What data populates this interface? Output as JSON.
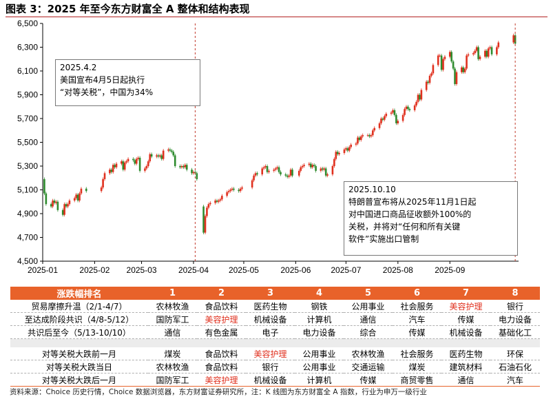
{
  "title": "图表 3：2025 年至今东方财富全 A 整体和结构表现",
  "chart_data": {
    "type": "candlestick",
    "x_ticks": [
      "2025-01",
      "2025-02",
      "2025-03",
      "2025-04",
      "2025-05",
      "2025-06",
      "2025-07",
      "2025-08",
      "2025-09"
    ],
    "y_ticks": [
      "6,500",
      "6,300",
      "6,100",
      "5,900",
      "5,700",
      "5,500",
      "5,300",
      "5,100",
      "4,900",
      "4,700",
      "4,500"
    ],
    "ylim": [
      4500,
      6500
    ],
    "up_color": "#e0301e",
    "down_color": "#2e8b2e",
    "event_lines": [
      "2025-04-02",
      "2025-10-10"
    ],
    "series": [
      {
        "date": "2025-01-02",
        "o": 5190,
        "c": 5070
      },
      {
        "date": "2025-01-03",
        "o": 5070,
        "c": 4980
      },
      {
        "date": "2025-01-06",
        "o": 4980,
        "c": 4960
      },
      {
        "date": "2025-01-07",
        "o": 4960,
        "c": 5010
      },
      {
        "date": "2025-01-08",
        "o": 5010,
        "c": 4990
      },
      {
        "date": "2025-01-09",
        "o": 4990,
        "c": 5000
      },
      {
        "date": "2025-01-10",
        "o": 5000,
        "c": 4930
      },
      {
        "date": "2025-01-13",
        "o": 4930,
        "c": 4890
      },
      {
        "date": "2025-01-14",
        "o": 4890,
        "c": 4980
      },
      {
        "date": "2025-01-15",
        "o": 4980,
        "c": 4960
      },
      {
        "date": "2025-01-16",
        "o": 4960,
        "c": 4980
      },
      {
        "date": "2025-01-17",
        "o": 4980,
        "c": 5010
      },
      {
        "date": "2025-01-20",
        "o": 5010,
        "c": 5030
      },
      {
        "date": "2025-01-21",
        "o": 5030,
        "c": 5060
      },
      {
        "date": "2025-01-22",
        "o": 5060,
        "c": 5010
      },
      {
        "date": "2025-01-23",
        "o": 5010,
        "c": 5070
      },
      {
        "date": "2025-01-24",
        "o": 5070,
        "c": 5110
      },
      {
        "date": "2025-01-27",
        "o": 5110,
        "c": 5090
      },
      {
        "date": "2025-02-05",
        "o": 5090,
        "c": 5120
      },
      {
        "date": "2025-02-06",
        "o": 5120,
        "c": 5190
      },
      {
        "date": "2025-02-07",
        "o": 5190,
        "c": 5240
      },
      {
        "date": "2025-02-10",
        "o": 5240,
        "c": 5270
      },
      {
        "date": "2025-02-11",
        "o": 5270,
        "c": 5250
      },
      {
        "date": "2025-02-12",
        "o": 5250,
        "c": 5310
      },
      {
        "date": "2025-02-13",
        "o": 5310,
        "c": 5290
      },
      {
        "date": "2025-02-14",
        "o": 5290,
        "c": 5320
      },
      {
        "date": "2025-02-17",
        "o": 5320,
        "c": 5340
      },
      {
        "date": "2025-02-18",
        "o": 5340,
        "c": 5270
      },
      {
        "date": "2025-02-19",
        "o": 5270,
        "c": 5330
      },
      {
        "date": "2025-02-20",
        "o": 5330,
        "c": 5340
      },
      {
        "date": "2025-02-21",
        "o": 5340,
        "c": 5360
      },
      {
        "date": "2025-02-24",
        "o": 5360,
        "c": 5350
      },
      {
        "date": "2025-02-25",
        "o": 5350,
        "c": 5320
      },
      {
        "date": "2025-02-26",
        "o": 5320,
        "c": 5360
      },
      {
        "date": "2025-02-27",
        "o": 5360,
        "c": 5370
      },
      {
        "date": "2025-02-28",
        "o": 5370,
        "c": 5260
      },
      {
        "date": "2025-03-03",
        "o": 5260,
        "c": 5280
      },
      {
        "date": "2025-03-04",
        "o": 5280,
        "c": 5300
      },
      {
        "date": "2025-03-05",
        "o": 5300,
        "c": 5340
      },
      {
        "date": "2025-03-06",
        "o": 5340,
        "c": 5400
      },
      {
        "date": "2025-03-07",
        "o": 5400,
        "c": 5380
      },
      {
        "date": "2025-03-10",
        "o": 5380,
        "c": 5390
      },
      {
        "date": "2025-03-11",
        "o": 5390,
        "c": 5380
      },
      {
        "date": "2025-03-12",
        "o": 5380,
        "c": 5390
      },
      {
        "date": "2025-03-13",
        "o": 5390,
        "c": 5360
      },
      {
        "date": "2025-03-14",
        "o": 5360,
        "c": 5430
      },
      {
        "date": "2025-03-17",
        "o": 5430,
        "c": 5440
      },
      {
        "date": "2025-03-18",
        "o": 5440,
        "c": 5430
      },
      {
        "date": "2025-03-19",
        "o": 5430,
        "c": 5420
      },
      {
        "date": "2025-03-20",
        "o": 5420,
        "c": 5390
      },
      {
        "date": "2025-03-21",
        "o": 5390,
        "c": 5300
      },
      {
        "date": "2025-03-24",
        "o": 5300,
        "c": 5290
      },
      {
        "date": "2025-03-25",
        "o": 5290,
        "c": 5300
      },
      {
        "date": "2025-03-26",
        "o": 5300,
        "c": 5290
      },
      {
        "date": "2025-03-27",
        "o": 5290,
        "c": 5310
      },
      {
        "date": "2025-03-28",
        "o": 5310,
        "c": 5270
      },
      {
        "date": "2025-03-31",
        "o": 5270,
        "c": 5240
      },
      {
        "date": "2025-04-01",
        "o": 5240,
        "c": 5250
      },
      {
        "date": "2025-04-02",
        "o": 5250,
        "c": 5240
      },
      {
        "date": "2025-04-03",
        "o": 5240,
        "c": 5190
      },
      {
        "date": "2025-04-07",
        "o": 4960,
        "c": 4740
      },
      {
        "date": "2025-04-08",
        "o": 4740,
        "c": 4880
      },
      {
        "date": "2025-04-09",
        "o": 4880,
        "c": 4950
      },
      {
        "date": "2025-04-10",
        "o": 4950,
        "c": 4980
      },
      {
        "date": "2025-04-11",
        "o": 4980,
        "c": 4990
      },
      {
        "date": "2025-04-14",
        "o": 4990,
        "c": 5010
      },
      {
        "date": "2025-04-15",
        "o": 5010,
        "c": 5000
      },
      {
        "date": "2025-04-16",
        "o": 5000,
        "c": 5010
      },
      {
        "date": "2025-04-17",
        "o": 5010,
        "c": 5020
      },
      {
        "date": "2025-04-18",
        "o": 5020,
        "c": 5050
      },
      {
        "date": "2025-04-21",
        "o": 5050,
        "c": 5080
      },
      {
        "date": "2025-04-22",
        "o": 5080,
        "c": 5090
      },
      {
        "date": "2025-04-23",
        "o": 5090,
        "c": 5100
      },
      {
        "date": "2025-04-24",
        "o": 5100,
        "c": 5110
      },
      {
        "date": "2025-04-25",
        "o": 5110,
        "c": 5100
      },
      {
        "date": "2025-04-28",
        "o": 5100,
        "c": 5090
      },
      {
        "date": "2025-04-29",
        "o": 5090,
        "c": 5110
      },
      {
        "date": "2025-04-30",
        "o": 5110,
        "c": 5120
      },
      {
        "date": "2025-05-06",
        "o": 5120,
        "c": 5180
      },
      {
        "date": "2025-05-07",
        "o": 5180,
        "c": 5220
      },
      {
        "date": "2025-05-08",
        "o": 5220,
        "c": 5240
      },
      {
        "date": "2025-05-09",
        "o": 5240,
        "c": 5230
      },
      {
        "date": "2025-05-12",
        "o": 5230,
        "c": 5280
      },
      {
        "date": "2025-05-13",
        "o": 5280,
        "c": 5290
      },
      {
        "date": "2025-05-14",
        "o": 5290,
        "c": 5300
      },
      {
        "date": "2025-05-15",
        "o": 5300,
        "c": 5250
      },
      {
        "date": "2025-05-16",
        "o": 5250,
        "c": 5260
      },
      {
        "date": "2025-05-19",
        "o": 5260,
        "c": 5270
      },
      {
        "date": "2025-05-20",
        "o": 5270,
        "c": 5280
      },
      {
        "date": "2025-05-21",
        "o": 5280,
        "c": 5290
      },
      {
        "date": "2025-05-22",
        "o": 5290,
        "c": 5250
      },
      {
        "date": "2025-05-23",
        "o": 5250,
        "c": 5230
      },
      {
        "date": "2025-05-26",
        "o": 5230,
        "c": 5220
      },
      {
        "date": "2025-05-27",
        "o": 5220,
        "c": 5210
      },
      {
        "date": "2025-05-28",
        "o": 5210,
        "c": 5220
      },
      {
        "date": "2025-05-29",
        "o": 5220,
        "c": 5270
      },
      {
        "date": "2025-05-30",
        "o": 5270,
        "c": 5220
      },
      {
        "date": "2025-06-03",
        "o": 5220,
        "c": 5260
      },
      {
        "date": "2025-06-04",
        "o": 5260,
        "c": 5290
      },
      {
        "date": "2025-06-05",
        "o": 5290,
        "c": 5300
      },
      {
        "date": "2025-06-06",
        "o": 5300,
        "c": 5310
      },
      {
        "date": "2025-06-09",
        "o": 5310,
        "c": 5320
      },
      {
        "date": "2025-06-10",
        "o": 5320,
        "c": 5290
      },
      {
        "date": "2025-06-11",
        "o": 5290,
        "c": 5310
      },
      {
        "date": "2025-06-12",
        "o": 5310,
        "c": 5300
      },
      {
        "date": "2025-06-13",
        "o": 5300,
        "c": 5260
      },
      {
        "date": "2025-06-16",
        "o": 5260,
        "c": 5280
      },
      {
        "date": "2025-06-17",
        "o": 5280,
        "c": 5270
      },
      {
        "date": "2025-06-18",
        "o": 5270,
        "c": 5280
      },
      {
        "date": "2025-06-19",
        "o": 5280,
        "c": 5220
      },
      {
        "date": "2025-06-20",
        "o": 5220,
        "c": 5230
      },
      {
        "date": "2025-06-23",
        "o": 5230,
        "c": 5300
      },
      {
        "date": "2025-06-24",
        "o": 5300,
        "c": 5360
      },
      {
        "date": "2025-06-25",
        "o": 5360,
        "c": 5420
      },
      {
        "date": "2025-06-26",
        "o": 5420,
        "c": 5400
      },
      {
        "date": "2025-06-27",
        "o": 5400,
        "c": 5410
      },
      {
        "date": "2025-06-30",
        "o": 5410,
        "c": 5440
      },
      {
        "date": "2025-07-01",
        "o": 5440,
        "c": 5450
      },
      {
        "date": "2025-07-02",
        "o": 5450,
        "c": 5430
      },
      {
        "date": "2025-07-03",
        "o": 5430,
        "c": 5460
      },
      {
        "date": "2025-07-04",
        "o": 5460,
        "c": 5480
      },
      {
        "date": "2025-07-07",
        "o": 5480,
        "c": 5490
      },
      {
        "date": "2025-07-08",
        "o": 5490,
        "c": 5540
      },
      {
        "date": "2025-07-09",
        "o": 5540,
        "c": 5520
      },
      {
        "date": "2025-07-10",
        "o": 5520,
        "c": 5550
      },
      {
        "date": "2025-07-11",
        "o": 5550,
        "c": 5560
      },
      {
        "date": "2025-07-14",
        "o": 5560,
        "c": 5560
      },
      {
        "date": "2025-07-15",
        "o": 5560,
        "c": 5550
      },
      {
        "date": "2025-07-16",
        "o": 5550,
        "c": 5560
      },
      {
        "date": "2025-07-17",
        "o": 5560,
        "c": 5600
      },
      {
        "date": "2025-07-18",
        "o": 5600,
        "c": 5620
      },
      {
        "date": "2025-07-21",
        "o": 5620,
        "c": 5660
      },
      {
        "date": "2025-07-22",
        "o": 5660,
        "c": 5700
      },
      {
        "date": "2025-07-23",
        "o": 5700,
        "c": 5690
      },
      {
        "date": "2025-07-24",
        "o": 5690,
        "c": 5720
      },
      {
        "date": "2025-07-25",
        "o": 5720,
        "c": 5740
      },
      {
        "date": "2025-07-28",
        "o": 5740,
        "c": 5750
      },
      {
        "date": "2025-07-29",
        "o": 5750,
        "c": 5770
      },
      {
        "date": "2025-07-30",
        "o": 5770,
        "c": 5730
      },
      {
        "date": "2025-07-31",
        "o": 5730,
        "c": 5660
      },
      {
        "date": "2025-08-01",
        "o": 5660,
        "c": 5680
      },
      {
        "date": "2025-08-04",
        "o": 5680,
        "c": 5730
      },
      {
        "date": "2025-08-05",
        "o": 5730,
        "c": 5780
      },
      {
        "date": "2025-08-06",
        "o": 5780,
        "c": 5800
      },
      {
        "date": "2025-08-07",
        "o": 5800,
        "c": 5780
      },
      {
        "date": "2025-08-08",
        "o": 5780,
        "c": 5770
      },
      {
        "date": "2025-08-11",
        "o": 5770,
        "c": 5810
      },
      {
        "date": "2025-08-12",
        "o": 5810,
        "c": 5840
      },
      {
        "date": "2025-08-13",
        "o": 5840,
        "c": 5900
      },
      {
        "date": "2025-08-14",
        "o": 5900,
        "c": 5860
      },
      {
        "date": "2025-08-15",
        "o": 5860,
        "c": 5940
      },
      {
        "date": "2025-08-18",
        "o": 5940,
        "c": 6010
      },
      {
        "date": "2025-08-19",
        "o": 6010,
        "c": 6000
      },
      {
        "date": "2025-08-20",
        "o": 6000,
        "c": 6060
      },
      {
        "date": "2025-08-21",
        "o": 6060,
        "c": 6080
      },
      {
        "date": "2025-08-22",
        "o": 6080,
        "c": 6150
      },
      {
        "date": "2025-08-25",
        "o": 6150,
        "c": 6230
      },
      {
        "date": "2025-08-26",
        "o": 6230,
        "c": 6230
      },
      {
        "date": "2025-08-27",
        "o": 6230,
        "c": 6110
      },
      {
        "date": "2025-08-28",
        "o": 6110,
        "c": 6200
      },
      {
        "date": "2025-08-29",
        "o": 6200,
        "c": 6220
      },
      {
        "date": "2025-09-01",
        "o": 6220,
        "c": 6260
      },
      {
        "date": "2025-09-02",
        "o": 6260,
        "c": 6180
      },
      {
        "date": "2025-09-03",
        "o": 6180,
        "c": 6120
      },
      {
        "date": "2025-09-04",
        "o": 6120,
        "c": 5990
      },
      {
        "date": "2025-09-05",
        "o": 5990,
        "c": 6090
      },
      {
        "date": "2025-09-08",
        "o": 6090,
        "c": 6130
      },
      {
        "date": "2025-09-09",
        "o": 6130,
        "c": 6090
      },
      {
        "date": "2025-09-10",
        "o": 6090,
        "c": 6120
      },
      {
        "date": "2025-09-11",
        "o": 6120,
        "c": 6230
      },
      {
        "date": "2025-09-12",
        "o": 6230,
        "c": 6240
      },
      {
        "date": "2025-09-15",
        "o": 6240,
        "c": 6250
      },
      {
        "date": "2025-09-16",
        "o": 6250,
        "c": 6270
      },
      {
        "date": "2025-09-17",
        "o": 6270,
        "c": 6300
      },
      {
        "date": "2025-09-18",
        "o": 6300,
        "c": 6200
      },
      {
        "date": "2025-09-19",
        "o": 6200,
        "c": 6220
      },
      {
        "date": "2025-09-22",
        "o": 6220,
        "c": 6270
      },
      {
        "date": "2025-09-23",
        "o": 6270,
        "c": 6220
      },
      {
        "date": "2025-09-24",
        "o": 6220,
        "c": 6290
      },
      {
        "date": "2025-09-25",
        "o": 6290,
        "c": 6300
      },
      {
        "date": "2025-09-26",
        "o": 6300,
        "c": 6240
      },
      {
        "date": "2025-09-29",
        "o": 6240,
        "c": 6300
      },
      {
        "date": "2025-09-30",
        "o": 6300,
        "c": 6340
      },
      {
        "date": "2025-10-09",
        "o": 6340,
        "c": 6400
      },
      {
        "date": "2025-10-10",
        "o": 6400,
        "c": 6330
      }
    ]
  },
  "annotations": {
    "a1": {
      "line1": "2025.4.2",
      "line2": "美国宣布4月5日起执行",
      "line3": "“对等关税”，中国为34%"
    },
    "a2": {
      "line1": "2025.10.10",
      "line2": "特朗普宣布将从2025年11月1日起",
      "line3": "对中国进口商品征收额外100%的",
      "line4": "关税，并将对“任何和所有关键",
      "line5": "软件”实施出口管制"
    }
  },
  "table": {
    "header": {
      "label": "涨跌幅排名",
      "cols": [
        "1",
        "2",
        "3",
        "4",
        "5",
        "6",
        "7",
        "8"
      ]
    },
    "rows_top": [
      {
        "label": "贸易摩擦升温（2/1-4/7）",
        "cells": [
          "农林牧渔",
          "食品饮料",
          "医药生物",
          "钢铁",
          "公用事业",
          "社会服务",
          "美容护理",
          "银行"
        ]
      },
      {
        "label": "至达成阶段共识（4/8-5/12）",
        "cells": [
          "国防军工",
          "美容护理",
          "机械设备",
          "计算机",
          "通信",
          "汽车",
          "传媒",
          "电力设备"
        ]
      },
      {
        "label": "共识后至今（5/13-10/10）",
        "cells": [
          "通信",
          "有色金属",
          "电子",
          "电力设备",
          "综合",
          "传媒",
          "机械设备",
          "基础化工"
        ]
      }
    ],
    "rows_bottom": [
      {
        "label": "对等关税大跌前一月",
        "cells": [
          "煤炭",
          "食品饮料",
          "美容护理",
          "公用事业",
          "农林牧渔",
          "社会服务",
          "医药生物",
          "环保"
        ]
      },
      {
        "label": "对等关税大跌当日",
        "cells": [
          "农林牧渔",
          "食品饮料",
          "银行",
          "公用事业",
          "交通运输",
          "煤炭",
          "建筑材料",
          "石油石化"
        ]
      },
      {
        "label": "对等关税大跌后一月",
        "cells": [
          "国防军工",
          "美容护理",
          "机械设备",
          "计算机",
          "传媒",
          "商贸零售",
          "通信",
          "汽车"
        ]
      }
    ],
    "highlight_text": "美容护理",
    "highlight_color": "#e0301e",
    "header_color": "#e8622a"
  },
  "source": "资料来源：Choice 历史行情，Choice 数据浏览器，东方财富证券研究所，注：K 线图为东方财富全 A 指数，行业为申万一级行业"
}
